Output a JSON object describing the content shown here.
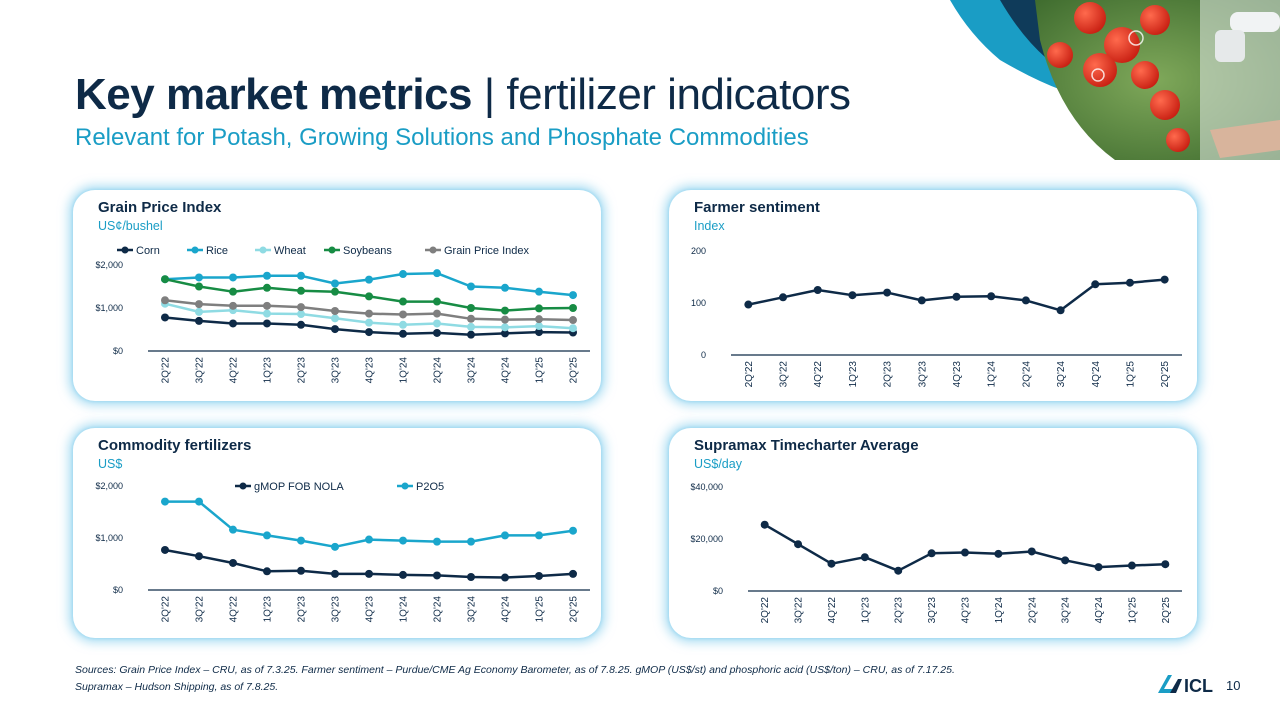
{
  "header": {
    "title_bold": "Key market metrics",
    "title_sep": "|",
    "title_light": "fertilizer indicators",
    "subtitle": "Relevant for Potash, Growing Solutions and Phosphate Commodities"
  },
  "colors": {
    "navy": "#0e2a47",
    "cyan": "#1a9dc5",
    "corn": "#0e2a47",
    "rice": "#1aa6cc",
    "wheat": "#8fdbe3",
    "soybeans": "#178c44",
    "grain_index": "#7f7f7f",
    "card_glow": "#7fcceb"
  },
  "footer": {
    "sources_line1": "Sources: Grain Price Index – CRU, as of 7.3.25. Farmer sentiment – Purdue/CME Ag Economy Barometer, as of 7.8.25. gMOP (US$/st) and phosphoric acid (US$/ton) – CRU, as of 7.17.25.",
    "sources_line2": "Supramax – Hudson Shipping, as of 7.8.25.",
    "logo_text": "ICL",
    "page_number": "10"
  },
  "chart_data": [
    {
      "type": "line",
      "title": "Grain Price Index",
      "unit": "US¢/bushel",
      "categories": [
        "2Q'22",
        "3Q'22",
        "4Q'22",
        "1Q'23",
        "2Q'23",
        "3Q'23",
        "4Q'23",
        "1Q'24",
        "2Q'24",
        "3Q'24",
        "4Q'24",
        "1Q'25",
        "2Q'25"
      ],
      "yticks": [
        "$0",
        "$1,000",
        "$2,000"
      ],
      "ylim": [
        0,
        2000
      ],
      "legend_position": "top",
      "series": [
        {
          "name": "Corn",
          "color": "#0e2a47",
          "values": [
            780,
            700,
            640,
            640,
            610,
            510,
            440,
            400,
            420,
            380,
            410,
            440,
            430
          ]
        },
        {
          "name": "Rice",
          "color": "#1aa6cc",
          "values": [
            1670,
            1710,
            1710,
            1750,
            1750,
            1570,
            1660,
            1790,
            1810,
            1500,
            1470,
            1380,
            1300
          ]
        },
        {
          "name": "Wheat",
          "color": "#8fdbe3",
          "values": [
            1100,
            910,
            950,
            870,
            860,
            760,
            660,
            610,
            640,
            560,
            550,
            580,
            530
          ]
        },
        {
          "name": "Soybeans",
          "color": "#178c44",
          "values": [
            1670,
            1500,
            1380,
            1470,
            1400,
            1380,
            1270,
            1150,
            1150,
            1000,
            940,
            990,
            1000
          ]
        },
        {
          "name": "Grain Price Index",
          "color": "#7f7f7f",
          "values": [
            1180,
            1090,
            1050,
            1050,
            1020,
            930,
            870,
            850,
            870,
            750,
            730,
            740,
            720
          ]
        }
      ],
      "grid": false
    },
    {
      "type": "line",
      "title": "Farmer sentiment",
      "unit": "Index",
      "categories": [
        "2Q'22",
        "3Q'22",
        "4Q'22",
        "1Q'23",
        "2Q'23",
        "3Q'23",
        "4Q'23",
        "1Q'24",
        "2Q'24",
        "3Q'24",
        "4Q'24",
        "1Q'25",
        "2Q'25"
      ],
      "yticks": [
        "0",
        "100",
        "200"
      ],
      "ylim": [
        0,
        200
      ],
      "series": [
        {
          "name": "",
          "color": "#0e2a47",
          "values": [
            97,
            111,
            125,
            115,
            120,
            105,
            112,
            113,
            105,
            86,
            136,
            139,
            145
          ]
        }
      ],
      "grid": false
    },
    {
      "type": "line",
      "title": "Commodity fertilizers",
      "unit": "US$",
      "categories": [
        "2Q'22",
        "3Q'22",
        "4Q'22",
        "1Q'23",
        "2Q'23",
        "3Q'23",
        "4Q'23",
        "1Q'24",
        "2Q'24",
        "3Q'24",
        "4Q'24",
        "1Q'25",
        "2Q'25"
      ],
      "yticks": [
        "$0",
        "$1,000",
        "$2,000"
      ],
      "ylim": [
        0,
        2000
      ],
      "legend_position": "top",
      "series": [
        {
          "name": "gMOP FOB NOLA",
          "color": "#0e2a47",
          "values": [
            770,
            650,
            520,
            360,
            370,
            310,
            310,
            290,
            280,
            250,
            240,
            270,
            310
          ]
        },
        {
          "name": "P2O5",
          "color": "#1aa6cc",
          "values": [
            1700,
            1700,
            1160,
            1050,
            950,
            830,
            970,
            950,
            930,
            930,
            1050,
            1050,
            1140
          ]
        }
      ],
      "grid": false
    },
    {
      "type": "line",
      "title": "Supramax Timecharter Average",
      "unit": "US$/day",
      "categories": [
        "2Q'22",
        "3Q'22",
        "4Q'22",
        "1Q'23",
        "2Q'23",
        "3Q'23",
        "4Q'23",
        "1Q'24",
        "2Q'24",
        "3Q'24",
        "4Q'24",
        "1Q'25",
        "2Q'25"
      ],
      "yticks": [
        "$0",
        "$20,000",
        "$40,000"
      ],
      "ylim": [
        0,
        40000
      ],
      "series": [
        {
          "name": "",
          "color": "#0e2a47",
          "values": [
            25500,
            18000,
            10500,
            13000,
            7800,
            14500,
            14800,
            14300,
            15200,
            11800,
            9200,
            9800,
            10300
          ]
        }
      ],
      "grid": false
    }
  ]
}
